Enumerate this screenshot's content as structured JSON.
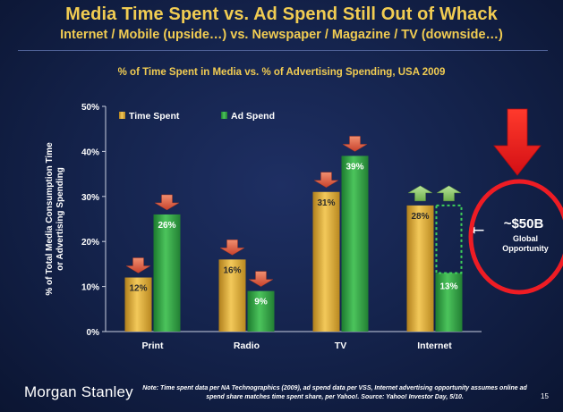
{
  "slide": {
    "title": "Media Time Spent vs. Ad Spend Still Out of Whack",
    "subtitle": "Internet / Mobile (upside…) vs. Newspaper / Magazine / TV (downside…)",
    "brand": "Morgan Stanley",
    "note": "Note: Time spent data per NA Technographics (2009), ad spend data per VSS, Internet advertising opportunity assumes online ad spend share matches time spent share, per Yahoo!. Source: Yahoo! Investor Day, 5/10.",
    "page_number": "15"
  },
  "chart_data": {
    "type": "bar",
    "title": "% of Time Spent in Media vs. % of Advertising Spending, USA 2009",
    "ylabel": "% of Total Media Consumption Time or Advertising Spending",
    "xlabel": "",
    "ylim": [
      0,
      50
    ],
    "yticks": [
      "0%",
      "10%",
      "20%",
      "30%",
      "40%",
      "50%"
    ],
    "categories": [
      "Print",
      "Radio",
      "TV",
      "Internet"
    ],
    "series": [
      {
        "name": "Time Spent",
        "values": [
          12,
          16,
          31,
          28
        ],
        "labels": [
          "12%",
          "16%",
          "31%",
          "28%"
        ],
        "color": "#e6b33d"
      },
      {
        "name": "Ad Spend",
        "values": [
          26,
          9,
          39,
          13
        ],
        "labels": [
          "26%",
          "9%",
          "39%",
          "13%"
        ],
        "color": "#37a84a"
      }
    ],
    "trend_arrows": {
      "Time Spent": [
        "down",
        "down",
        "down",
        "up"
      ],
      "Ad Spend": [
        "down",
        "down",
        "down",
        "up"
      ]
    },
    "gap_target": {
      "category": "Internet",
      "from": 13,
      "to": 28
    },
    "legend_position": "top-left",
    "annotation": {
      "value": "~$50B",
      "line1": "Global",
      "line2": "Opportunity"
    },
    "colors": {
      "arrow_down": "#d9503a",
      "arrow_up": "#8fc76a",
      "callout": "#ee1c24"
    }
  }
}
